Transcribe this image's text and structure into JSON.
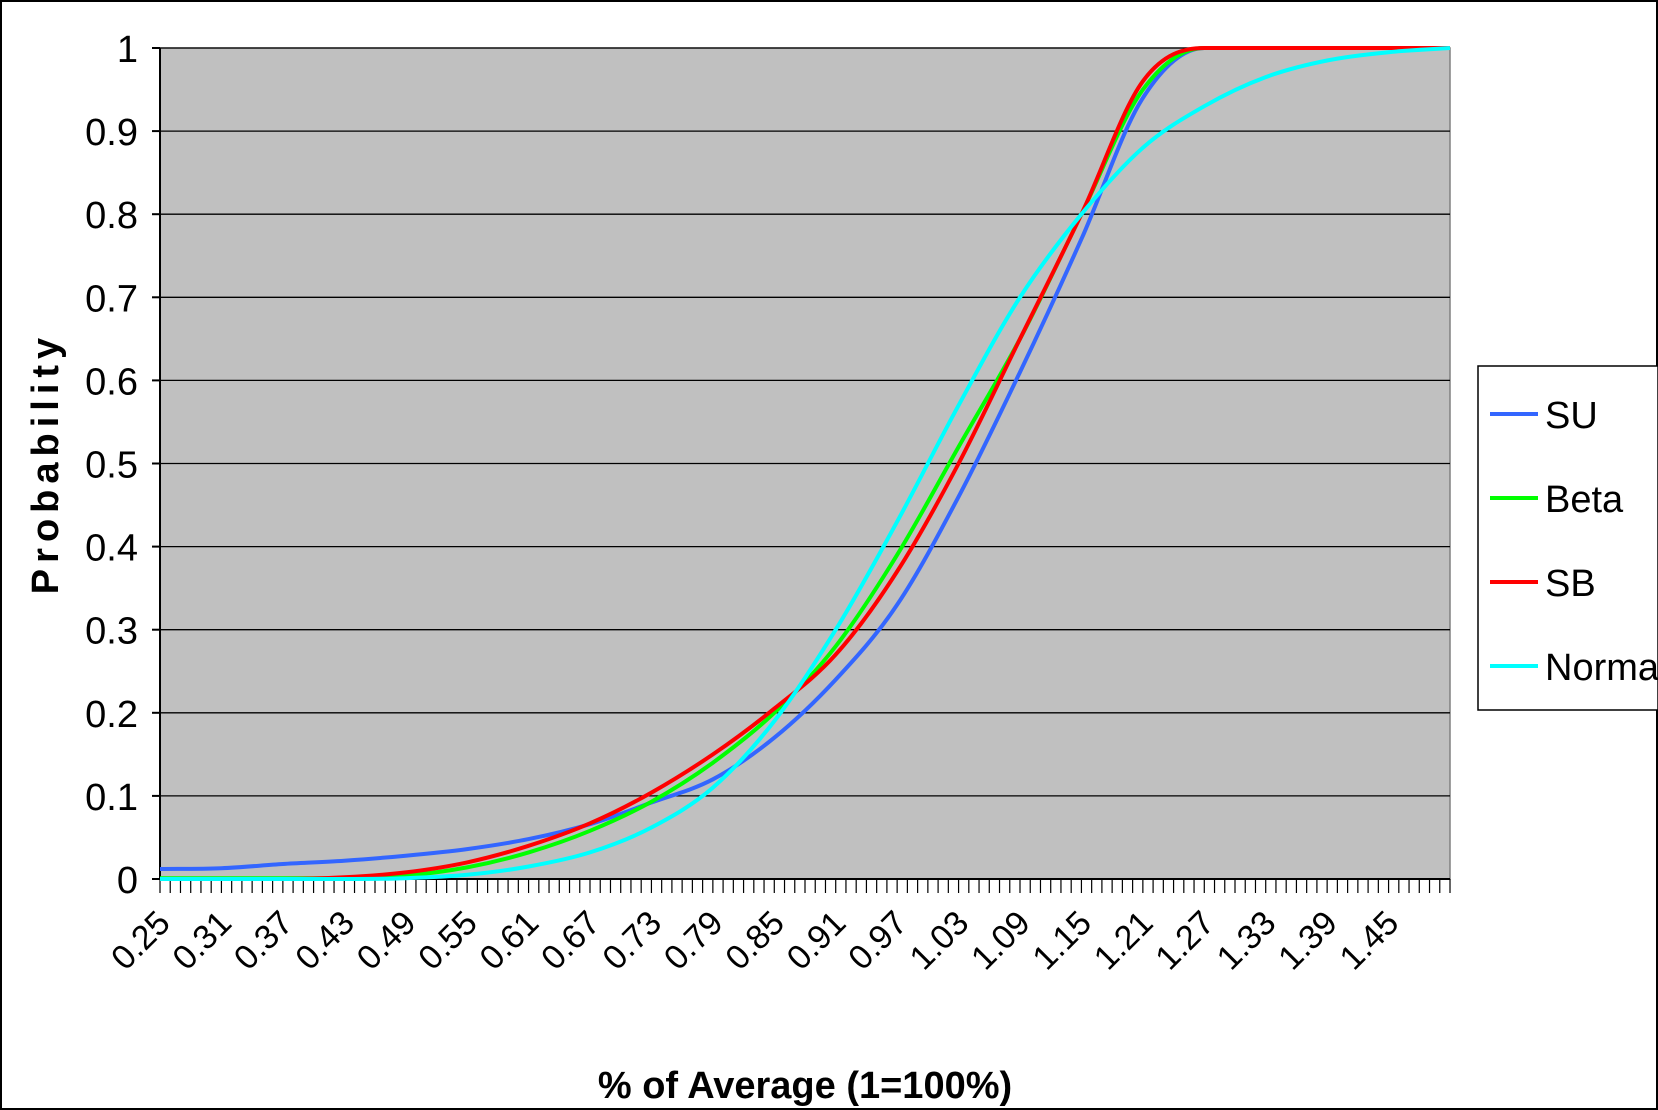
{
  "chart_data": {
    "type": "line",
    "title": "",
    "xlabel": "% of Average (1=100%)",
    "ylabel": "Probability",
    "ylim": [
      0,
      1
    ],
    "y_ticks": [
      "0",
      "0.1",
      "0.2",
      "0.3",
      "0.4",
      "0.5",
      "0.6",
      "0.7",
      "0.8",
      "0.9",
      "1"
    ],
    "x_range": [
      0.25,
      1.51
    ],
    "x_tick_labels": [
      "0.25",
      "0.31",
      "0.37",
      "0.43",
      "0.49",
      "0.55",
      "0.61",
      "0.67",
      "0.73",
      "0.79",
      "0.85",
      "0.91",
      "0.97",
      "1.03",
      "1.09",
      "1.15",
      "1.21",
      "1.27",
      "1.33",
      "1.39",
      "1.45"
    ],
    "grid": "horizontal",
    "plot_background": "#c0c0c0",
    "legend_position": "right",
    "series": [
      {
        "name": "SU",
        "color": "#3366ff",
        "points": [
          [
            0.25,
            0.012
          ],
          [
            0.31,
            0.013
          ],
          [
            0.37,
            0.018
          ],
          [
            0.43,
            0.022
          ],
          [
            0.49,
            0.028
          ],
          [
            0.55,
            0.036
          ],
          [
            0.61,
            0.048
          ],
          [
            0.67,
            0.066
          ],
          [
            0.73,
            0.092
          ],
          [
            0.79,
            0.12
          ],
          [
            0.85,
            0.17
          ],
          [
            0.91,
            0.24
          ],
          [
            0.97,
            0.33
          ],
          [
            1.03,
            0.46
          ],
          [
            1.09,
            0.61
          ],
          [
            1.15,
            0.77
          ],
          [
            1.21,
            0.94
          ],
          [
            1.27,
            1.0
          ],
          [
            1.33,
            1.0
          ],
          [
            1.39,
            1.0
          ],
          [
            1.45,
            1.0
          ],
          [
            1.51,
            1.0
          ]
        ]
      },
      {
        "name": "Beta",
        "color": "#00ff00",
        "points": [
          [
            0.25,
            0.001
          ],
          [
            0.31,
            0.001
          ],
          [
            0.37,
            0.001
          ],
          [
            0.43,
            0.001
          ],
          [
            0.49,
            0.004
          ],
          [
            0.55,
            0.014
          ],
          [
            0.61,
            0.032
          ],
          [
            0.67,
            0.058
          ],
          [
            0.73,
            0.093
          ],
          [
            0.79,
            0.14
          ],
          [
            0.85,
            0.2
          ],
          [
            0.91,
            0.28
          ],
          [
            0.97,
            0.39
          ],
          [
            1.03,
            0.52
          ],
          [
            1.09,
            0.65
          ],
          [
            1.15,
            0.8
          ],
          [
            1.21,
            0.95
          ],
          [
            1.27,
            1.0
          ],
          [
            1.33,
            1.0
          ],
          [
            1.39,
            1.0
          ],
          [
            1.45,
            1.0
          ],
          [
            1.51,
            1.0
          ]
        ]
      },
      {
        "name": "SB",
        "color": "#ff0000",
        "points": [
          [
            0.25,
            0.0
          ],
          [
            0.31,
            0.0
          ],
          [
            0.37,
            0.0
          ],
          [
            0.43,
            0.002
          ],
          [
            0.49,
            0.008
          ],
          [
            0.55,
            0.02
          ],
          [
            0.61,
            0.04
          ],
          [
            0.67,
            0.067
          ],
          [
            0.73,
            0.104
          ],
          [
            0.79,
            0.15
          ],
          [
            0.85,
            0.205
          ],
          [
            0.91,
            0.27
          ],
          [
            0.97,
            0.37
          ],
          [
            1.03,
            0.5
          ],
          [
            1.09,
            0.65
          ],
          [
            1.15,
            0.8
          ],
          [
            1.21,
            0.96
          ],
          [
            1.27,
            1.0
          ],
          [
            1.33,
            1.0
          ],
          [
            1.39,
            1.0
          ],
          [
            1.45,
            1.0
          ],
          [
            1.51,
            1.0
          ]
        ]
      },
      {
        "name": "Normal",
        "color": "#00ffff",
        "points": [
          [
            0.25,
            0.0
          ],
          [
            0.31,
            0.0
          ],
          [
            0.37,
            0.0
          ],
          [
            0.43,
            0.0
          ],
          [
            0.49,
            0.001
          ],
          [
            0.55,
            0.005
          ],
          [
            0.61,
            0.015
          ],
          [
            0.67,
            0.032
          ],
          [
            0.73,
            0.062
          ],
          [
            0.79,
            0.11
          ],
          [
            0.85,
            0.19
          ],
          [
            0.91,
            0.3
          ],
          [
            0.97,
            0.43
          ],
          [
            1.03,
            0.57
          ],
          [
            1.09,
            0.7
          ],
          [
            1.15,
            0.8
          ],
          [
            1.21,
            0.88
          ],
          [
            1.27,
            0.93
          ],
          [
            1.33,
            0.965
          ],
          [
            1.39,
            0.985
          ],
          [
            1.45,
            0.995
          ],
          [
            1.51,
            1.0
          ]
        ]
      }
    ]
  }
}
